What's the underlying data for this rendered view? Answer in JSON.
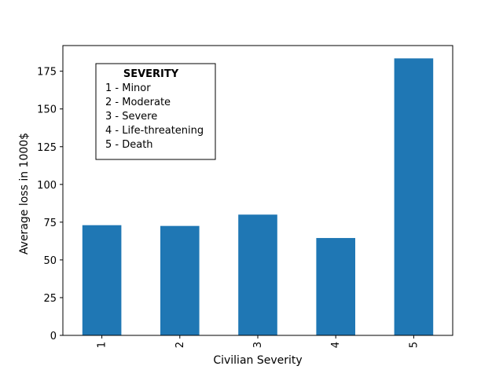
{
  "chart_data": {
    "type": "bar",
    "categories": [
      "1",
      "2",
      "3",
      "4",
      "5"
    ],
    "values": [
      73,
      72.5,
      80,
      64.5,
      183.5
    ],
    "title": "",
    "xlabel": "Civilian Severity",
    "ylabel": "Average loss in 1000$",
    "ylim": [
      0,
      192
    ],
    "yticks": [
      0,
      25,
      50,
      75,
      100,
      125,
      150,
      175
    ],
    "xtick_rotation": "vertical",
    "bar_color": "#1f77b4",
    "grid": false,
    "legend": {
      "placement": "upper-left",
      "title": "SEVERITY",
      "entries": [
        "1 - Minor",
        "2 - Moderate",
        "3 - Severe",
        "4 - Life-threatening",
        "5 - Death"
      ]
    }
  }
}
